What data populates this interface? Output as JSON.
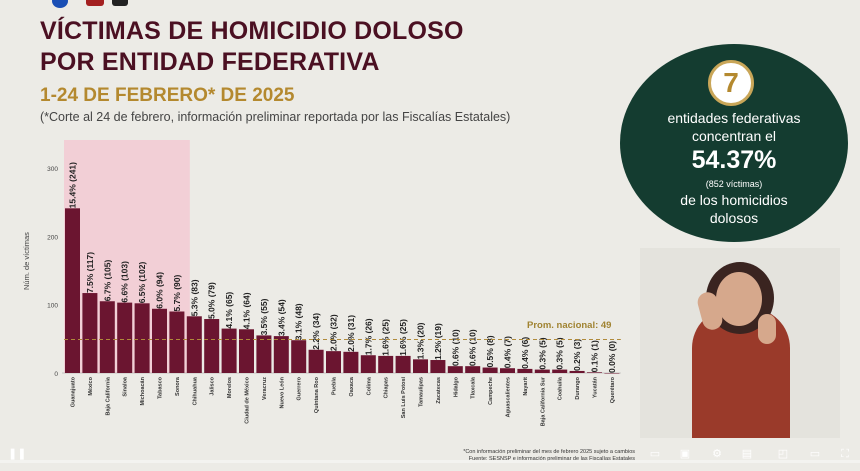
{
  "header": {
    "title_line1": "VÍCTIMAS DE HOMICIDIO DOLOSO",
    "title_line2": "POR ENTIDAD FEDERATIVA",
    "subtitle": "1-24 DE FEBRERO* DE 2025",
    "note": "(*Corte al 24 de febrero, información preliminar reportada por las Fiscalías Estatales)"
  },
  "stat_box": {
    "number": "7",
    "line1": "entidades federativas",
    "line2": "concentran el",
    "percent": "54.37%",
    "line3": "(852 víctimas)",
    "line4": "de los homicidios",
    "line5": "dolosos"
  },
  "prom_label": "Prom. nacional: 49",
  "footnote_line1": "*Con información preliminar del mes de febrero 2025 sujeto a cambios",
  "footnote_line2": "Fuente: SESNSP e información preliminar de las Fiscalías Estatales",
  "chart_data": {
    "type": "bar",
    "ylabel": "Núm. de víctimas",
    "ylim": [
      0,
      300
    ],
    "yticks": [
      0,
      100,
      200,
      300
    ],
    "average": 49,
    "highlight_count": 7,
    "colors": {
      "bar": "#6b1530",
      "highlight_bg": "#f2cfd6",
      "avg_line": "#b08a3a"
    },
    "categories": [
      "Guanajuato",
      "México",
      "Baja California",
      "Sinaloa",
      "Michoacán",
      "Tabasco",
      "Sonora",
      "Chihuahua",
      "Jalisco",
      "Morelos",
      "Ciudad de México",
      "Veracruz",
      "Nuevo León",
      "Guerrero",
      "Quintana Roo",
      "Puebla",
      "Oaxaca",
      "Colima",
      "Chiapas",
      "San Luis Potosí",
      "Tamaulipas",
      "Zacatecas",
      "Hidalgo",
      "Tlaxcala",
      "Campeche",
      "Aguascalientes",
      "Nayarit",
      "Baja California Sur",
      "Coahuila",
      "Durango",
      "Yucatán",
      "Querétaro"
    ],
    "values": [
      241,
      117,
      105,
      103,
      102,
      94,
      90,
      83,
      79,
      65,
      64,
      55,
      54,
      48,
      34,
      32,
      31,
      26,
      25,
      25,
      20,
      19,
      10,
      10,
      8,
      7,
      6,
      5,
      5,
      3,
      1,
      0
    ],
    "labels": [
      "15.4% (241)",
      "7.5% (117)",
      "6.7% (105)",
      "6.6% (103)",
      "6.5% (102)",
      "6.0% (94)",
      "5.7% (90)",
      "5.3% (83)",
      "5.0% (79)",
      "4.1% (65)",
      "4.1% (64)",
      "3.5% (55)",
      "3.4% (54)",
      "3.1% (48)",
      "2.2% (34)",
      "2.0% (32)",
      "2.0% (31)",
      "1.7% (26)",
      "1.6% (25)",
      "1.6% (25)",
      "1.3% (20)",
      "1.2% (19)",
      "0.6% (10)",
      "0.6% (10)",
      "0.5% (8)",
      "0.4% (7)",
      "0.4% (6)",
      "0.3% (5)",
      "0.3% (5)",
      "0.2% (3)",
      "0.1% (1)",
      "0.0% (0)"
    ]
  },
  "controls": {
    "pause_icon": "pause-icon",
    "settings_icon": "gear-icon",
    "fullscreen_icon": "fullscreen-icon"
  }
}
